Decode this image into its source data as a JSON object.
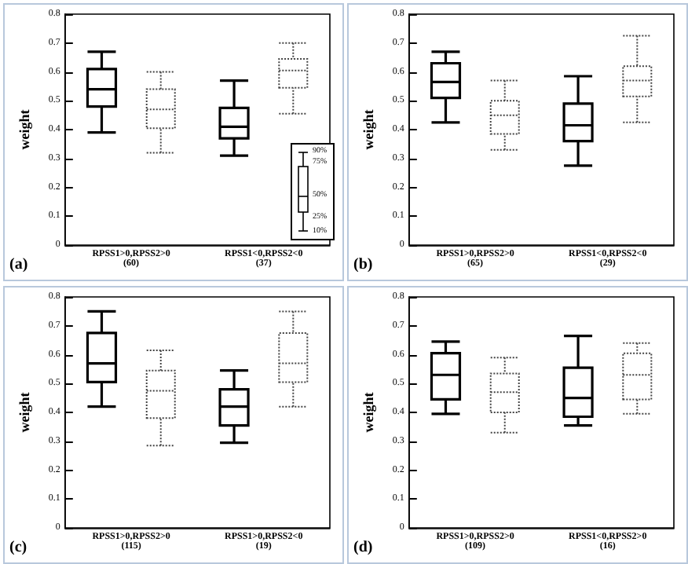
{
  "chart_data": [
    {
      "type": "box",
      "ylabel": "weight",
      "categories": [
        "RPSS1>0,RPSS2>0\n(60)",
        "RPSS1<0,RPSS2<0\n(37)"
      ],
      "ylim": [
        0,
        0.8
      ],
      "yticks": [
        0,
        0.1,
        0.2,
        0.3,
        0.4,
        0.5,
        0.6,
        0.7,
        0.8
      ],
      "annotations": [
        "(a)",
        "90%",
        "75%",
        "50%",
        "25%",
        "10%"
      ],
      "series": [
        {
          "color": "#000000",
          "line_style": "solid",
          "boxes": [
            {
              "low": 0.39,
              "q1": 0.48,
              "median": 0.54,
              "q3": 0.61,
              "high": 0.67
            },
            {
              "low": 0.31,
              "q1": 0.37,
              "median": 0.41,
              "q3": 0.475,
              "high": 0.57
            }
          ]
        },
        {
          "color": "#444444",
          "line_style": "dotted",
          "boxes": [
            {
              "low": 0.32,
              "q1": 0.405,
              "median": 0.47,
              "q3": 0.54,
              "high": 0.6
            },
            {
              "low": 0.455,
              "q1": 0.545,
              "median": 0.605,
              "q3": 0.645,
              "high": 0.7
            }
          ]
        }
      ]
    },
    {
      "type": "box",
      "ylabel": "weight",
      "categories": [
        "RPSS1>0,RPSS2>0\n(65)",
        "RPSS1<0,RPSS2<0\n(29)"
      ],
      "ylim": [
        0,
        0.8
      ],
      "yticks": [
        0,
        0.1,
        0.2,
        0.3,
        0.4,
        0.5,
        0.6,
        0.7,
        0.8
      ],
      "annotations": [
        "(b)"
      ],
      "series": [
        {
          "color": "#000000",
          "line_style": "solid",
          "boxes": [
            {
              "low": 0.425,
              "q1": 0.51,
              "median": 0.565,
              "q3": 0.63,
              "high": 0.67
            },
            {
              "low": 0.275,
              "q1": 0.36,
              "median": 0.415,
              "q3": 0.49,
              "high": 0.585
            }
          ]
        },
        {
          "color": "#444444",
          "line_style": "dotted",
          "boxes": [
            {
              "low": 0.33,
              "q1": 0.385,
              "median": 0.45,
              "q3": 0.5,
              "high": 0.57
            },
            {
              "low": 0.425,
              "q1": 0.515,
              "median": 0.57,
              "q3": 0.62,
              "high": 0.725
            }
          ]
        }
      ]
    },
    {
      "type": "box",
      "ylabel": "weight",
      "categories": [
        "RPSS1>0,RPSS2>0\n(115)",
        "RPSS1>0,RPSS2<0\n(19)"
      ],
      "ylim": [
        0,
        0.8
      ],
      "yticks": [
        0,
        0.1,
        0.2,
        0.3,
        0.4,
        0.5,
        0.6,
        0.7,
        0.8
      ],
      "annotations": [
        "(c)"
      ],
      "series": [
        {
          "color": "#000000",
          "line_style": "solid",
          "boxes": [
            {
              "low": 0.42,
              "q1": 0.505,
              "median": 0.57,
              "q3": 0.675,
              "high": 0.75
            },
            {
              "low": 0.295,
              "q1": 0.355,
              "median": 0.42,
              "q3": 0.48,
              "high": 0.545
            }
          ]
        },
        {
          "color": "#444444",
          "line_style": "dotted",
          "boxes": [
            {
              "low": 0.285,
              "q1": 0.38,
              "median": 0.475,
              "q3": 0.545,
              "high": 0.615
            },
            {
              "low": 0.42,
              "q1": 0.505,
              "median": 0.57,
              "q3": 0.675,
              "high": 0.75
            }
          ]
        }
      ]
    },
    {
      "type": "box",
      "ylabel": "weight",
      "categories": [
        "RPSS1>0,RPSS2>0\n(109)",
        "RPSS1<0,RPSS2>0\n(16)"
      ],
      "ylim": [
        0,
        0.8
      ],
      "yticks": [
        0,
        0.1,
        0.2,
        0.3,
        0.4,
        0.5,
        0.6,
        0.7,
        0.8
      ],
      "annotations": [
        "(d)"
      ],
      "series": [
        {
          "color": "#000000",
          "line_style": "solid",
          "boxes": [
            {
              "low": 0.395,
              "q1": 0.445,
              "median": 0.53,
              "q3": 0.605,
              "high": 0.645
            },
            {
              "low": 0.355,
              "q1": 0.385,
              "median": 0.45,
              "q3": 0.555,
              "high": 0.665
            }
          ]
        },
        {
          "color": "#444444",
          "line_style": "dotted",
          "boxes": [
            {
              "low": 0.33,
              "q1": 0.4,
              "median": 0.47,
              "q3": 0.535,
              "high": 0.59
            },
            {
              "low": 0.395,
              "q1": 0.445,
              "median": 0.53,
              "q3": 0.605,
              "high": 0.64
            }
          ]
        }
      ]
    }
  ]
}
